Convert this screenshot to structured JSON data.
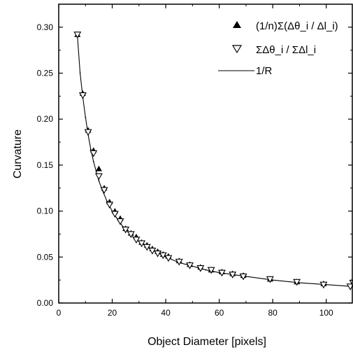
{
  "chart_data": {
    "type": "scatter",
    "title": "",
    "xlabel": "Object Diameter [pixels]",
    "ylabel": "Curvature",
    "xlim": [
      0,
      110
    ],
    "ylim": [
      0,
      0.325
    ],
    "xticks": [
      0,
      20,
      40,
      60,
      80,
      100
    ],
    "yticks": [
      0.0,
      0.05,
      0.1,
      0.15,
      0.2,
      0.25,
      0.3
    ],
    "x_tick_labels": [
      "0",
      "20",
      "40",
      "60",
      "80",
      "100"
    ],
    "y_tick_labels": [
      "0.00",
      "0.05",
      "0.10",
      "0.15",
      "0.20",
      "0.25",
      "0.30"
    ],
    "grid": false,
    "legend_position": "top-right",
    "legend": [
      {
        "label": "(1/n)Σ(Δθ_i / Δl_i)",
        "marker": "filled-triangle-up"
      },
      {
        "label": "ΣΔθ_i / ΣΔl_i",
        "marker": "open-triangle-down"
      },
      {
        "label": "1/R",
        "marker": "line-with-dots"
      }
    ],
    "series": [
      {
        "name": "(1/n)Σ(Δθ_i / Δl_i)",
        "marker": "filled-triangle-up",
        "x": [
          7,
          9,
          11,
          13,
          15,
          17,
          19,
          21,
          23,
          25,
          27,
          29,
          31,
          33,
          35,
          37,
          39,
          41,
          45,
          49,
          53,
          57,
          61,
          65,
          69,
          79,
          89,
          99,
          110
        ],
        "y": [
          0.292,
          0.228,
          0.188,
          0.166,
          0.146,
          0.125,
          0.11,
          0.1,
          0.092,
          0.081,
          0.076,
          0.072,
          0.066,
          0.063,
          0.059,
          0.056,
          0.053,
          0.051,
          0.046,
          0.042,
          0.039,
          0.036,
          0.034,
          0.032,
          0.03,
          0.026,
          0.023,
          0.021,
          0.02
        ]
      },
      {
        "name": "ΣΔθ_i / ΣΔl_i",
        "marker": "open-triangle-down",
        "x": [
          7,
          9,
          11,
          13,
          15,
          17,
          19,
          21,
          23,
          25,
          27,
          29,
          31,
          33,
          35,
          37,
          39,
          41,
          45,
          49,
          53,
          57,
          61,
          65,
          69,
          79,
          89,
          99,
          109,
          110
        ],
        "y": [
          0.292,
          0.226,
          0.186,
          0.163,
          0.138,
          0.123,
          0.107,
          0.097,
          0.089,
          0.08,
          0.075,
          0.069,
          0.065,
          0.061,
          0.057,
          0.054,
          0.052,
          0.049,
          0.045,
          0.041,
          0.038,
          0.036,
          0.033,
          0.031,
          0.029,
          0.026,
          0.023,
          0.02,
          0.018,
          0.022
        ]
      },
      {
        "name": "1/R",
        "type": "line",
        "x": [
          7,
          8,
          9,
          10,
          11,
          12,
          13,
          14,
          15,
          16,
          18,
          20,
          22,
          24,
          26,
          28,
          30,
          33,
          36,
          40,
          45,
          50,
          55,
          60,
          65,
          70,
          80,
          90,
          100,
          110
        ],
        "y": [
          0.29,
          0.25,
          0.224,
          0.202,
          0.183,
          0.167,
          0.154,
          0.143,
          0.133,
          0.125,
          0.111,
          0.1,
          0.091,
          0.083,
          0.077,
          0.071,
          0.067,
          0.061,
          0.056,
          0.05,
          0.044,
          0.04,
          0.036,
          0.033,
          0.031,
          0.029,
          0.025,
          0.022,
          0.02,
          0.018
        ]
      }
    ]
  }
}
